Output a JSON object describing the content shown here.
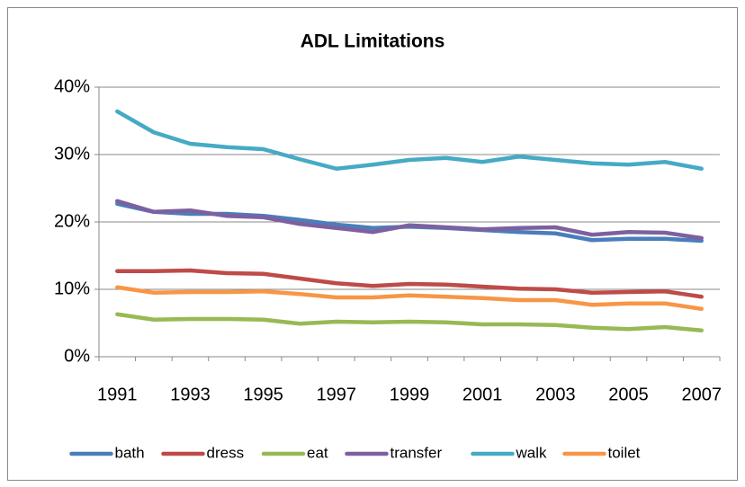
{
  "chart_data": {
    "type": "line",
    "title": "ADL Limitations",
    "categories": [
      "1991",
      null,
      "1993",
      null,
      "1995",
      null,
      "1997",
      null,
      "1999",
      null,
      "2001",
      null,
      "2003",
      null,
      "2005",
      null,
      "2007"
    ],
    "series": [
      {
        "name": "bath",
        "color": "#4a7ebb",
        "values": [
          22.7,
          21.5,
          21.2,
          21.2,
          20.9,
          20.3,
          19.6,
          19.1,
          19.3,
          19.1,
          18.8,
          18.5,
          18.3,
          17.3,
          17.5,
          17.5,
          17.2
        ]
      },
      {
        "name": "dress",
        "color": "#be4b48",
        "values": [
          12.7,
          12.7,
          12.8,
          12.4,
          12.3,
          11.6,
          10.9,
          10.5,
          10.8,
          10.7,
          10.4,
          10.1,
          10.0,
          9.5,
          9.6,
          9.7,
          8.9
        ]
      },
      {
        "name": "eat",
        "color": "#98b954",
        "values": [
          6.3,
          5.5,
          5.6,
          5.6,
          5.5,
          4.9,
          5.2,
          5.1,
          5.2,
          5.1,
          4.8,
          4.8,
          4.7,
          4.3,
          4.1,
          4.4,
          3.9
        ]
      },
      {
        "name": "transfer",
        "color": "#7d60a0",
        "values": [
          23.1,
          21.5,
          21.7,
          20.9,
          20.7,
          19.7,
          19.1,
          18.5,
          19.5,
          19.2,
          18.9,
          19.1,
          19.2,
          18.1,
          18.5,
          18.4,
          17.6
        ]
      },
      {
        "name": "walk",
        "color": "#46aac5",
        "values": [
          36.4,
          33.3,
          31.6,
          31.1,
          30.8,
          29.3,
          27.9,
          28.5,
          29.2,
          29.5,
          28.9,
          29.7,
          29.2,
          28.7,
          28.5,
          28.9,
          27.9
        ]
      },
      {
        "name": "toilet",
        "color": "#f79646",
        "values": [
          10.3,
          9.5,
          9.6,
          9.6,
          9.7,
          9.3,
          8.8,
          8.8,
          9.1,
          8.9,
          8.7,
          8.4,
          8.4,
          7.7,
          7.9,
          7.9,
          7.1
        ]
      }
    ],
    "ylim": [
      0,
      40
    ],
    "yticks": [
      {
        "value": 0,
        "label": "0%"
      },
      {
        "value": 10,
        "label": "10%"
      },
      {
        "value": 20,
        "label": "20%"
      },
      {
        "value": 30,
        "label": "30%"
      },
      {
        "value": 40,
        "label": "40%"
      }
    ],
    "grid": true,
    "legend": "bottom"
  }
}
